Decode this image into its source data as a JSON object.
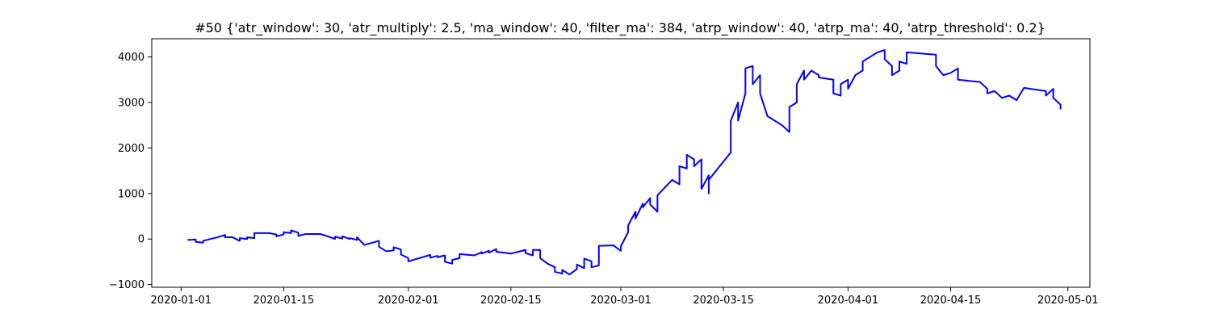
{
  "chart_data": {
    "type": "line",
    "title": "#50 {'atr_window': 30, 'atr_multiply': 2.5, 'ma_window': 40, 'filter_ma': 384, 'atrp_window': 40, 'atrp_ma': 40, 'atrp_threshold': 0.2}",
    "xlabel": "",
    "ylabel": "",
    "x_type": "date",
    "xlim": [
      "2019-12-28",
      "2020-05-04"
    ],
    "ylim": [
      -1060,
      4400
    ],
    "xticks": [
      "2020-01-01",
      "2020-01-15",
      "2020-02-01",
      "2020-02-15",
      "2020-03-01",
      "2020-03-15",
      "2020-04-01",
      "2020-04-15",
      "2020-05-01"
    ],
    "yticks": [
      -1000,
      0,
      1000,
      2000,
      3000,
      4000
    ],
    "grid": false,
    "legend": "none",
    "series": [
      {
        "color": "#0000ff",
        "points": [
          [
            "2020-01-02",
            0
          ],
          [
            "2020-01-02",
            -20
          ],
          [
            "2020-01-03",
            -10
          ],
          [
            "2020-01-03",
            -60
          ],
          [
            "2020-01-04",
            -80
          ],
          [
            "2020-01-04",
            -40
          ],
          [
            "2020-01-06",
            40
          ],
          [
            "2020-01-07",
            90
          ],
          [
            "2020-01-07",
            40
          ],
          [
            "2020-01-08",
            40
          ],
          [
            "2020-01-09",
            -40
          ],
          [
            "2020-01-09",
            20
          ],
          [
            "2020-01-10",
            0
          ],
          [
            "2020-01-10",
            40
          ],
          [
            "2020-01-11",
            20
          ],
          [
            "2020-01-11",
            130
          ],
          [
            "2020-01-13",
            130
          ],
          [
            "2020-01-14",
            100
          ],
          [
            "2020-01-14",
            60
          ],
          [
            "2020-01-15",
            100
          ],
          [
            "2020-01-15",
            150
          ],
          [
            "2020-01-16",
            130
          ],
          [
            "2020-01-16",
            190
          ],
          [
            "2020-01-17",
            140
          ],
          [
            "2020-01-17",
            70
          ],
          [
            "2020-01-18",
            110
          ],
          [
            "2020-01-20",
            110
          ],
          [
            "2020-01-21",
            60
          ],
          [
            "2020-01-22",
            0
          ],
          [
            "2020-01-22",
            50
          ],
          [
            "2020-01-23",
            10
          ],
          [
            "2020-01-23",
            60
          ],
          [
            "2020-01-24",
            0
          ],
          [
            "2020-01-24",
            20
          ],
          [
            "2020-01-25",
            -20
          ],
          [
            "2020-01-25",
            40
          ],
          [
            "2020-01-26",
            -130
          ],
          [
            "2020-01-28",
            -40
          ],
          [
            "2020-01-28",
            -170
          ],
          [
            "2020-01-29",
            -270
          ],
          [
            "2020-01-30",
            -250
          ],
          [
            "2020-01-30",
            -180
          ],
          [
            "2020-01-31",
            -230
          ],
          [
            "2020-01-31",
            -340
          ],
          [
            "2020-02-01",
            -420
          ],
          [
            "2020-02-01",
            -490
          ],
          [
            "2020-02-04",
            -350
          ],
          [
            "2020-02-04",
            -410
          ],
          [
            "2020-02-05",
            -370
          ],
          [
            "2020-02-05",
            -400
          ],
          [
            "2020-02-06",
            -360
          ],
          [
            "2020-02-06",
            -500
          ],
          [
            "2020-02-07",
            -540
          ],
          [
            "2020-02-07",
            -460
          ],
          [
            "2020-02-08",
            -420
          ],
          [
            "2020-02-08",
            -330
          ],
          [
            "2020-02-10",
            -360
          ],
          [
            "2020-02-11",
            -290
          ],
          [
            "2020-02-11",
            -320
          ],
          [
            "2020-02-12",
            -260
          ],
          [
            "2020-02-12",
            -300
          ],
          [
            "2020-02-13",
            -220
          ],
          [
            "2020-02-13",
            -280
          ],
          [
            "2020-02-15",
            -320
          ],
          [
            "2020-02-16",
            -280
          ],
          [
            "2020-02-17",
            -240
          ],
          [
            "2020-02-17",
            -310
          ],
          [
            "2020-02-18",
            -360
          ],
          [
            "2020-02-18",
            -240
          ],
          [
            "2020-02-19",
            -240
          ],
          [
            "2020-02-19",
            -420
          ],
          [
            "2020-02-20",
            -540
          ],
          [
            "2020-02-21",
            -620
          ],
          [
            "2020-02-21",
            -720
          ],
          [
            "2020-02-22",
            -760
          ],
          [
            "2020-02-22",
            -680
          ],
          [
            "2020-02-23",
            -780
          ],
          [
            "2020-02-24",
            -660
          ],
          [
            "2020-02-24",
            -560
          ],
          [
            "2020-02-25",
            -640
          ],
          [
            "2020-02-25",
            -430
          ],
          [
            "2020-02-26",
            -490
          ],
          [
            "2020-02-26",
            -620
          ],
          [
            "2020-02-27",
            -580
          ],
          [
            "2020-02-27",
            -150
          ],
          [
            "2020-02-29",
            -140
          ],
          [
            "2020-03-01",
            -260
          ],
          [
            "2020-03-01",
            -160
          ],
          [
            "2020-03-02",
            150
          ],
          [
            "2020-03-02",
            300
          ],
          [
            "2020-03-03",
            600
          ],
          [
            "2020-03-03",
            450
          ],
          [
            "2020-03-04",
            780
          ],
          [
            "2020-03-04",
            700
          ],
          [
            "2020-03-05",
            900
          ],
          [
            "2020-03-05",
            760
          ],
          [
            "2020-03-06",
            600
          ],
          [
            "2020-03-06",
            960
          ],
          [
            "2020-03-08",
            1300
          ],
          [
            "2020-03-09",
            1200
          ],
          [
            "2020-03-09",
            1600
          ],
          [
            "2020-03-10",
            1550
          ],
          [
            "2020-03-10",
            1850
          ],
          [
            "2020-03-11",
            1750
          ],
          [
            "2020-03-11",
            1600
          ],
          [
            "2020-03-12",
            1750
          ],
          [
            "2020-03-12",
            1100
          ],
          [
            "2020-03-13",
            1400
          ],
          [
            "2020-03-13",
            1000
          ],
          [
            "2020-03-13",
            1300
          ],
          [
            "2020-03-16",
            1900
          ],
          [
            "2020-03-16",
            2600
          ],
          [
            "2020-03-17",
            3000
          ],
          [
            "2020-03-17",
            2600
          ],
          [
            "2020-03-18",
            3200
          ],
          [
            "2020-03-18",
            3750
          ],
          [
            "2020-03-19",
            3800
          ],
          [
            "2020-03-19",
            3400
          ],
          [
            "2020-03-20",
            3600
          ],
          [
            "2020-03-20",
            3200
          ],
          [
            "2020-03-21",
            2700
          ],
          [
            "2020-03-23",
            2500
          ],
          [
            "2020-03-24",
            2350
          ],
          [
            "2020-03-24",
            2900
          ],
          [
            "2020-03-25",
            3000
          ],
          [
            "2020-03-25",
            3400
          ],
          [
            "2020-03-26",
            3700
          ],
          [
            "2020-03-26",
            3500
          ],
          [
            "2020-03-27",
            3700
          ],
          [
            "2020-03-28",
            3600
          ],
          [
            "2020-03-28",
            3550
          ],
          [
            "2020-03-30",
            3500
          ],
          [
            "2020-03-30",
            3200
          ],
          [
            "2020-03-31",
            3150
          ],
          [
            "2020-03-31",
            3400
          ],
          [
            "2020-04-01",
            3500
          ],
          [
            "2020-04-01",
            3300
          ],
          [
            "2020-04-02",
            3600
          ],
          [
            "2020-04-03",
            3700
          ],
          [
            "2020-04-03",
            3900
          ],
          [
            "2020-04-05",
            4100
          ],
          [
            "2020-04-06",
            4150
          ],
          [
            "2020-04-06",
            3950
          ],
          [
            "2020-04-07",
            3800
          ],
          [
            "2020-04-07",
            3600
          ],
          [
            "2020-04-08",
            3700
          ],
          [
            "2020-04-08",
            3900
          ],
          [
            "2020-04-09",
            3850
          ],
          [
            "2020-04-09",
            4100
          ],
          [
            "2020-04-13",
            4050
          ],
          [
            "2020-04-13",
            3800
          ],
          [
            "2020-04-14",
            3600
          ],
          [
            "2020-04-15",
            3650
          ],
          [
            "2020-04-16",
            3750
          ],
          [
            "2020-04-16",
            3500
          ],
          [
            "2020-04-19",
            3450
          ],
          [
            "2020-04-20",
            3300
          ],
          [
            "2020-04-20",
            3200
          ],
          [
            "2020-04-21",
            3250
          ],
          [
            "2020-04-22",
            3100
          ],
          [
            "2020-04-23",
            3150
          ],
          [
            "2020-04-24",
            3050
          ],
          [
            "2020-04-25",
            3320
          ],
          [
            "2020-04-28",
            3250
          ],
          [
            "2020-04-28",
            3150
          ],
          [
            "2020-04-29",
            3300
          ],
          [
            "2020-04-29",
            3100
          ],
          [
            "2020-04-30",
            2950
          ],
          [
            "2020-04-30",
            2850
          ]
        ]
      }
    ]
  }
}
